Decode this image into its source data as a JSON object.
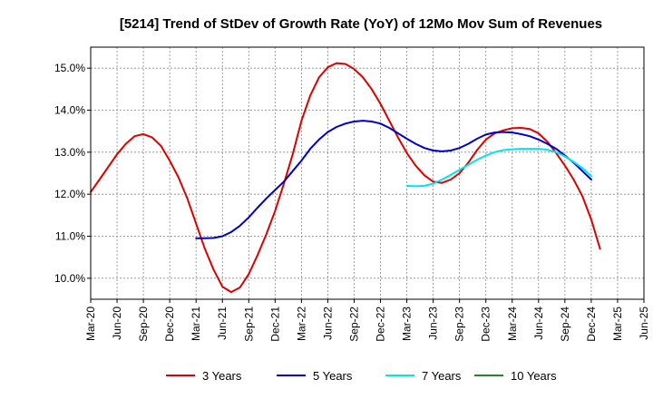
{
  "chart_data": {
    "type": "line",
    "title": "[5214]  Trend of StDev of Growth Rate (YoY) of 12Mo Mov Sum of Revenues",
    "xlabel": "",
    "ylabel": "",
    "ylim": [
      9.5,
      15.5
    ],
    "yticks": [
      10.0,
      11.0,
      12.0,
      13.0,
      14.0,
      15.0
    ],
    "ytick_labels": [
      "10.0%",
      "11.0%",
      "12.0%",
      "13.0%",
      "14.0%",
      "15.0%"
    ],
    "xticks": [
      "Mar-20",
      "Jun-20",
      "Sep-20",
      "Dec-20",
      "Mar-21",
      "Jun-21",
      "Sep-21",
      "Dec-21",
      "Mar-22",
      "Jun-22",
      "Sep-22",
      "Dec-22",
      "Mar-23",
      "Jun-23",
      "Sep-23",
      "Dec-23",
      "Mar-24",
      "Jun-24",
      "Sep-24",
      "Dec-24",
      "Mar-25",
      "Jun-25"
    ],
    "grid": true,
    "legend_position": "bottom",
    "series": [
      {
        "name": "3 Years",
        "color": "#dd0000",
        "start_month": 0,
        "values": [
          12.05,
          12.35,
          12.65,
          12.95,
          13.2,
          13.38,
          13.43,
          13.35,
          13.15,
          12.8,
          12.4,
          11.9,
          11.3,
          10.7,
          10.2,
          9.8,
          9.67,
          9.78,
          10.1,
          10.55,
          11.05,
          11.6,
          12.25,
          12.95,
          13.75,
          14.35,
          14.78,
          15.02,
          15.12,
          15.1,
          14.98,
          14.78,
          14.5,
          14.15,
          13.75,
          13.35,
          12.98,
          12.68,
          12.45,
          12.3,
          12.27,
          12.35,
          12.5,
          12.75,
          13.05,
          13.3,
          13.45,
          13.52,
          13.57,
          13.58,
          13.55,
          13.45,
          13.25,
          12.98,
          12.68,
          12.35,
          11.95,
          11.4,
          10.7
        ]
      },
      {
        "name": "5 Years",
        "color": "#0000cc",
        "start_month": 12,
        "values": [
          10.95,
          10.95,
          10.96,
          11.0,
          11.1,
          11.25,
          11.45,
          11.68,
          11.9,
          12.1,
          12.3,
          12.55,
          12.8,
          13.08,
          13.3,
          13.48,
          13.6,
          13.68,
          13.73,
          13.75,
          13.73,
          13.68,
          13.58,
          13.45,
          13.32,
          13.2,
          13.1,
          13.04,
          13.02,
          13.04,
          13.1,
          13.2,
          13.32,
          13.42,
          13.47,
          13.48,
          13.47,
          13.43,
          13.38,
          13.3,
          13.2,
          13.08,
          12.92,
          12.75,
          12.55,
          12.35
        ]
      },
      {
        "name": "7 Years",
        "color": "#00e5ee",
        "start_month": 36,
        "values": [
          12.2,
          12.19,
          12.2,
          12.25,
          12.35,
          12.46,
          12.58,
          12.7,
          12.82,
          12.92,
          13.0,
          13.05,
          13.07,
          13.08,
          13.08,
          13.08,
          13.06,
          13.0,
          12.9,
          12.77,
          12.62,
          12.43
        ]
      },
      {
        "name": "10 Years",
        "color": "#228822",
        "start_month": 0,
        "values": []
      }
    ]
  }
}
